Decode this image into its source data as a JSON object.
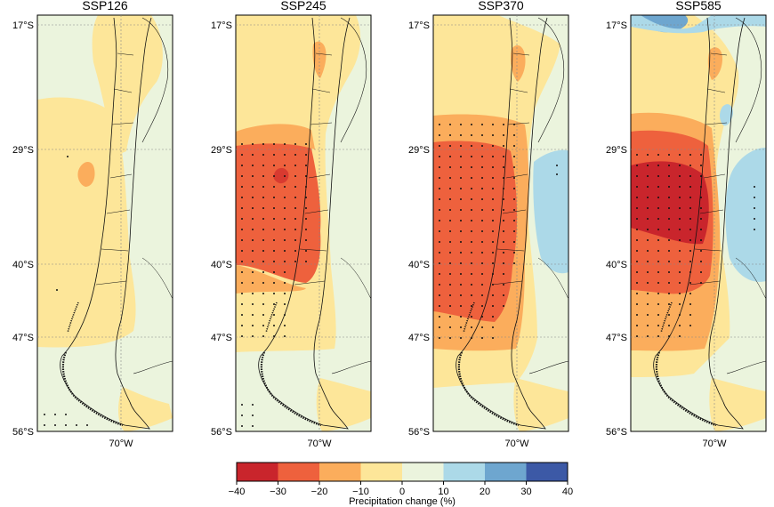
{
  "panels": [
    {
      "title": "SSP126"
    },
    {
      "title": "SSP245"
    },
    {
      "title": "SSP370"
    },
    {
      "title": "SSP585"
    }
  ],
  "lat_ticks": [
    "17°S",
    "29°S",
    "40°S",
    "47°S",
    "56°S"
  ],
  "lon_ticks": [
    "70°W"
  ],
  "colorbar": {
    "label": "Precipitation change (%)",
    "ticks": [
      "−40",
      "−30",
      "−20",
      "−10",
      "0",
      "10",
      "20",
      "30",
      "40"
    ],
    "colors": [
      "#c9252c",
      "#ee613d",
      "#fbad5c",
      "#fde699",
      "#ebf4dd",
      "#acd9e8",
      "#6ea6cf",
      "#3c59a6"
    ]
  }
}
